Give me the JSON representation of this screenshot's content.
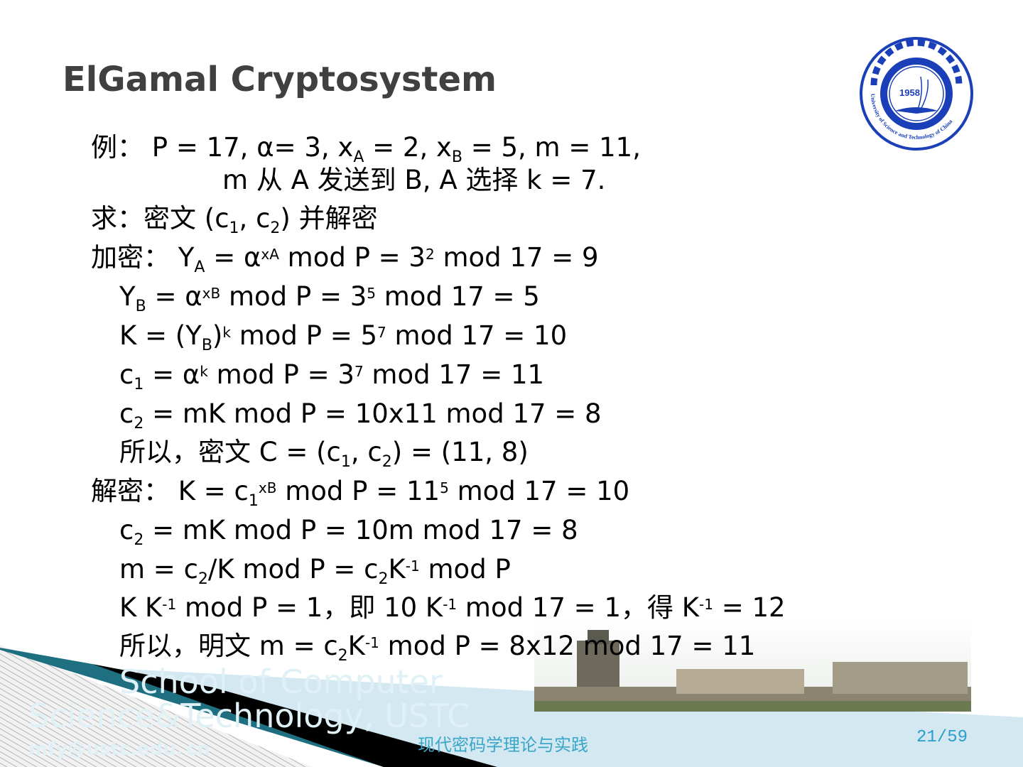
{
  "title": "ElGamal Cryptosystem",
  "lines": [
    {
      "indent": "l0",
      "segs": [
        [
          "cjk",
          "例： "
        ],
        [
          "n",
          "P = 17, α= 3, x"
        ],
        [
          "sub",
          "A"
        ],
        [
          "n",
          " = 2, x"
        ],
        [
          "sub",
          "B"
        ],
        [
          "n",
          " = 5, m = 11,"
        ]
      ]
    },
    {
      "indent": "l2",
      "segs": [
        [
          "n",
          "m "
        ],
        [
          "cjk",
          "从"
        ],
        [
          "n",
          " A "
        ],
        [
          "cjk",
          "发送到"
        ],
        [
          "n",
          " B, A "
        ],
        [
          "cjk",
          "选择"
        ],
        [
          "n",
          " k = 7."
        ]
      ]
    },
    {
      "indent": "l0",
      "segs": [
        [
          "cjk",
          "求：密文"
        ],
        [
          "n",
          " (c"
        ],
        [
          "sub",
          "1"
        ],
        [
          "n",
          ", c"
        ],
        [
          "sub",
          "2"
        ],
        [
          "n",
          ") "
        ],
        [
          "cjk",
          "并解密"
        ]
      ]
    },
    {
      "indent": "l0",
      "segs": [
        [
          "cjk",
          "加密： "
        ],
        [
          "n",
          "Y"
        ],
        [
          "sub",
          "A"
        ],
        [
          "n",
          " = α"
        ],
        [
          "sup",
          "xA"
        ],
        [
          "n",
          " mod P = 3"
        ],
        [
          "sup",
          "2"
        ],
        [
          "n",
          " mod 17 = 9"
        ]
      ]
    },
    {
      "indent": "l1",
      "segs": [
        [
          "n",
          "Y"
        ],
        [
          "sub",
          "B"
        ],
        [
          "n",
          " = α"
        ],
        [
          "sup",
          "xB"
        ],
        [
          "n",
          " mod P = 3"
        ],
        [
          "sup",
          "5"
        ],
        [
          "n",
          " mod 17 = 5"
        ]
      ]
    },
    {
      "indent": "l1",
      "segs": [
        [
          "n",
          "K = (Y"
        ],
        [
          "sub",
          "B"
        ],
        [
          "n",
          ")"
        ],
        [
          "sup",
          "k"
        ],
        [
          "n",
          " mod P = 5"
        ],
        [
          "sup",
          "7"
        ],
        [
          "n",
          " mod 17 = 10"
        ]
      ]
    },
    {
      "indent": "l1",
      "segs": [
        [
          "n",
          "c"
        ],
        [
          "sub",
          "1"
        ],
        [
          "n",
          " = α"
        ],
        [
          "sup",
          "k"
        ],
        [
          "n",
          " mod P = 3"
        ],
        [
          "sup",
          "7"
        ],
        [
          "n",
          " mod 17 = 11"
        ]
      ]
    },
    {
      "indent": "l1",
      "segs": [
        [
          "n",
          "c"
        ],
        [
          "sub",
          "2"
        ],
        [
          "n",
          " = mK mod P = 10x11 mod 17 = 8"
        ]
      ]
    },
    {
      "indent": "l1",
      "segs": [
        [
          "cjk",
          "所以，密文"
        ],
        [
          "n",
          " C = (c"
        ],
        [
          "sub",
          "1"
        ],
        [
          "n",
          ", c"
        ],
        [
          "sub",
          "2"
        ],
        [
          "n",
          ") = (11, 8)"
        ]
      ]
    },
    {
      "indent": "l0",
      "segs": [
        [
          "cjk",
          "解密： "
        ],
        [
          "n",
          "K = c"
        ],
        [
          "sub",
          "1"
        ],
        [
          "sup",
          "xB"
        ],
        [
          "n",
          " mod P = 11"
        ],
        [
          "sup",
          "5"
        ],
        [
          "n",
          " mod 17 = 10"
        ]
      ]
    },
    {
      "indent": "l1",
      "segs": [
        [
          "n",
          "c"
        ],
        [
          "sub",
          "2"
        ],
        [
          "n",
          " = mK mod P = 10m mod 17 = 8"
        ]
      ]
    },
    {
      "indent": "l1",
      "segs": [
        [
          "n",
          "m = c"
        ],
        [
          "sub",
          "2"
        ],
        [
          "n",
          "/K mod P = c"
        ],
        [
          "sub",
          "2"
        ],
        [
          "n",
          "K"
        ],
        [
          "sup",
          "-1"
        ],
        [
          "n",
          " mod P"
        ]
      ]
    },
    {
      "indent": "l1",
      "segs": [
        [
          "n",
          "K K"
        ],
        [
          "sup",
          "-1"
        ],
        [
          "n",
          " mod P = 1"
        ],
        [
          "cjk",
          "，即"
        ],
        [
          "n",
          " 10 K"
        ],
        [
          "sup",
          "-1"
        ],
        [
          "n",
          " mod 17 = 1"
        ],
        [
          "cjk",
          "，得"
        ],
        [
          "n",
          " K"
        ],
        [
          "sup",
          "-1"
        ],
        [
          "n",
          " = 12"
        ]
      ]
    },
    {
      "indent": "l1",
      "segs": [
        [
          "cjk",
          "所以，明文"
        ],
        [
          "n",
          " m = c"
        ],
        [
          "sub",
          "2"
        ],
        [
          "n",
          "K"
        ],
        [
          "sup",
          "-1"
        ],
        [
          "n",
          " mod P = 8x12 mod 17 = 11"
        ]
      ]
    }
  ],
  "watermark": {
    "line1": "School of Computer",
    "line2": "Science&Technology, USTC",
    "email1": "mfy@ustc.edu.",
    "email2": "cn"
  },
  "logo": {
    "year": "1958",
    "text": "University of Science and Technology of China"
  },
  "footer": "现代密码学理论与实践",
  "page": "21/59",
  "colors": {
    "title": "#404040",
    "footer": "#3aa6c8",
    "logo": "#1a3fb8"
  }
}
